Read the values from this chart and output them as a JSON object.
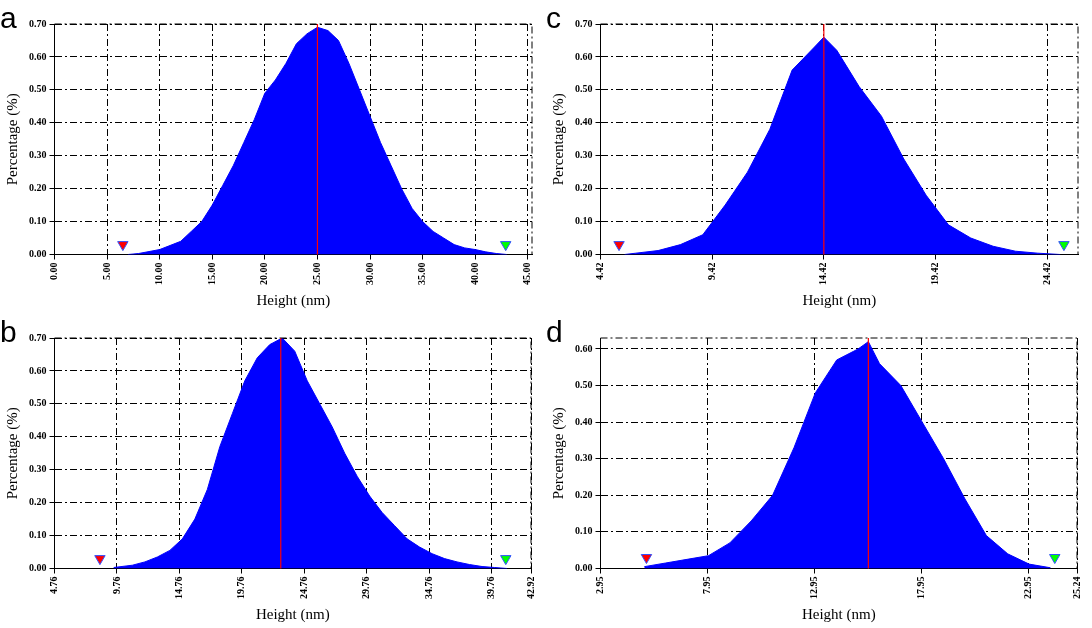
{
  "chart_data": [
    {
      "type": "area",
      "title": "a",
      "xlabel": "Height (nm)",
      "ylabel": "Percentage (%)",
      "grid": true,
      "xlim": [
        0,
        45.4
      ],
      "xticks": [
        {
          "value": 0,
          "label": "0.00"
        },
        {
          "value": 5,
          "label": "5.00"
        },
        {
          "value": 10,
          "label": "10.00"
        },
        {
          "value": 15,
          "label": "15.00"
        },
        {
          "value": 20,
          "label": "20.00"
        },
        {
          "value": 25,
          "label": "25.00"
        },
        {
          "value": 30,
          "label": "30.00"
        },
        {
          "value": 35,
          "label": "35.00"
        },
        {
          "value": 40,
          "label": "40.00"
        },
        {
          "value": 45,
          "label": "45.00"
        }
      ],
      "ylim": [
        0,
        0.7
      ],
      "yticks": [
        {
          "value": 0,
          "label": "0.00"
        },
        {
          "value": 0.1,
          "label": "0.10"
        },
        {
          "value": 0.2,
          "label": "0.20"
        },
        {
          "value": 0.3,
          "label": "0.30"
        },
        {
          "value": 0.4,
          "label": "0.40"
        },
        {
          "value": 0.5,
          "label": "0.50"
        },
        {
          "value": 0.6,
          "label": "0.60"
        },
        {
          "value": 0.7,
          "label": "0.70"
        }
      ],
      "ref_lines": [
        {
          "axis": "x",
          "value": 25,
          "color": "#ff0000"
        }
      ],
      "series": [
        {
          "color": "#0000ff",
          "x": [
            7,
            8,
            10,
            12,
            13,
            14,
            15,
            16,
            17,
            18,
            19,
            20,
            21,
            22,
            23,
            24,
            25,
            26,
            27,
            28,
            29,
            30,
            31,
            32,
            33,
            34,
            35,
            36,
            37,
            38,
            39,
            40,
            41,
            42,
            43
          ],
          "values": [
            0,
            0.003,
            0.015,
            0.04,
            0.07,
            0.1,
            0.15,
            0.21,
            0.27,
            0.34,
            0.41,
            0.49,
            0.53,
            0.58,
            0.64,
            0.67,
            0.69,
            0.68,
            0.65,
            0.58,
            0.5,
            0.42,
            0.34,
            0.27,
            0.2,
            0.14,
            0.1,
            0.07,
            0.05,
            0.03,
            0.02,
            0.015,
            0.008,
            0.003,
            0
          ]
        },
        {
          "type": "scatter",
          "marker": "triangle",
          "color": "#ff0000",
          "x": [
            6.5
          ],
          "values": [
            0.03
          ]
        },
        {
          "type": "scatter",
          "marker": "triangle",
          "color": "#00ff00",
          "x": [
            42.9
          ],
          "values": [
            0.03
          ]
        }
      ]
    },
    {
      "type": "area",
      "title": "c",
      "xlabel": "Height (nm)",
      "ylabel": "Percentage (%)",
      "grid": true,
      "xlim": [
        4.42,
        25.8
      ],
      "xticks": [
        {
          "value": 4.42,
          "label": "4.42"
        },
        {
          "value": 9.42,
          "label": "9.42"
        },
        {
          "value": 14.42,
          "label": "14.42"
        },
        {
          "value": 19.42,
          "label": "19.42"
        },
        {
          "value": 24.42,
          "label": "24.42"
        }
      ],
      "ylim": [
        0,
        0.7
      ],
      "yticks": [
        {
          "value": 0,
          "label": "0.00"
        },
        {
          "value": 0.1,
          "label": "0.10"
        },
        {
          "value": 0.2,
          "label": "0.20"
        },
        {
          "value": 0.3,
          "label": "0.30"
        },
        {
          "value": 0.4,
          "label": "0.40"
        },
        {
          "value": 0.5,
          "label": "0.50"
        },
        {
          "value": 0.6,
          "label": "0.60"
        },
        {
          "value": 0.7,
          "label": "0.70"
        }
      ],
      "ref_lines": [
        {
          "axis": "x",
          "value": 14.42,
          "color": "#ff0000"
        }
      ],
      "series": [
        {
          "color": "#0000ff",
          "x": [
            5.5,
            6,
            7,
            8,
            9,
            10,
            11,
            12,
            13,
            14,
            14.42,
            15,
            16,
            17,
            18,
            19,
            20,
            21,
            22,
            23,
            24,
            25
          ],
          "values": [
            0,
            0.004,
            0.012,
            0.03,
            0.06,
            0.15,
            0.25,
            0.38,
            0.56,
            0.63,
            0.66,
            0.62,
            0.51,
            0.42,
            0.29,
            0.18,
            0.09,
            0.05,
            0.025,
            0.01,
            0.004,
            0
          ]
        },
        {
          "type": "scatter",
          "marker": "triangle",
          "color": "#ff0000",
          "x": [
            5.25
          ],
          "values": [
            0.03
          ]
        },
        {
          "type": "scatter",
          "marker": "triangle",
          "color": "#00ff00",
          "x": [
            25.17
          ],
          "values": [
            0.03
          ]
        }
      ]
    },
    {
      "type": "area",
      "title": "b",
      "xlabel": "Height (nm)",
      "ylabel": "Percentage (%)",
      "grid": true,
      "xlim": [
        4.76,
        42.92
      ],
      "xticks": [
        {
          "value": 4.76,
          "label": "4.76"
        },
        {
          "value": 9.76,
          "label": "9.76"
        },
        {
          "value": 14.76,
          "label": "14.76"
        },
        {
          "value": 19.76,
          "label": "19.76"
        },
        {
          "value": 24.76,
          "label": "24.76"
        },
        {
          "value": 29.76,
          "label": "29.76"
        },
        {
          "value": 34.76,
          "label": "34.76"
        },
        {
          "value": 39.76,
          "label": "39.76"
        },
        {
          "value": 42.92,
          "label": "42.92"
        }
      ],
      "ylim": [
        0,
        0.7
      ],
      "yticks": [
        {
          "value": 0,
          "label": "0.00"
        },
        {
          "value": 0.1,
          "label": "0.10"
        },
        {
          "value": 0.2,
          "label": "0.20"
        },
        {
          "value": 0.3,
          "label": "0.30"
        },
        {
          "value": 0.4,
          "label": "0.40"
        },
        {
          "value": 0.5,
          "label": "0.50"
        },
        {
          "value": 0.6,
          "label": "0.60"
        },
        {
          "value": 0.7,
          "label": "0.70"
        }
      ],
      "ref_lines": [
        {
          "axis": "x",
          "value": 22.88,
          "color": "#ff0000"
        }
      ],
      "series": [
        {
          "color": "#0000ff",
          "x": [
            9.5,
            11,
            12,
            13,
            14,
            15,
            16,
            17,
            18,
            19,
            20,
            21,
            22,
            23,
            24,
            25,
            26,
            27,
            28,
            29,
            30,
            31,
            32,
            33,
            34,
            35,
            36,
            37,
            38,
            39,
            40,
            41
          ],
          "values": [
            0.003,
            0.01,
            0.02,
            0.035,
            0.055,
            0.09,
            0.15,
            0.24,
            0.37,
            0.47,
            0.57,
            0.64,
            0.68,
            0.7,
            0.66,
            0.57,
            0.5,
            0.43,
            0.35,
            0.28,
            0.22,
            0.17,
            0.13,
            0.09,
            0.065,
            0.045,
            0.03,
            0.02,
            0.012,
            0.006,
            0.003,
            0
          ]
        },
        {
          "type": "scatter",
          "marker": "triangle",
          "color": "#ff0000",
          "x": [
            8.4
          ],
          "values": [
            0.03
          ]
        },
        {
          "type": "scatter",
          "marker": "triangle",
          "color": "#00ff00",
          "x": [
            40.9
          ],
          "values": [
            0.03
          ]
        }
      ]
    },
    {
      "type": "area",
      "title": "d",
      "xlabel": "Height (nm)",
      "ylabel": "Percentage (%)",
      "grid": true,
      "xlim": [
        2.95,
        25.24
      ],
      "xticks": [
        {
          "value": 2.95,
          "label": "2.95"
        },
        {
          "value": 7.95,
          "label": "7.95"
        },
        {
          "value": 12.95,
          "label": "12.95"
        },
        {
          "value": 17.95,
          "label": "17.95"
        },
        {
          "value": 22.95,
          "label": "22.95"
        },
        {
          "value": 25.24,
          "label": "25.24"
        }
      ],
      "ylim": [
        0,
        0.63
      ],
      "yticks": [
        {
          "value": 0,
          "label": "0.00"
        },
        {
          "value": 0.1,
          "label": "0.10"
        },
        {
          "value": 0.2,
          "label": "0.20"
        },
        {
          "value": 0.3,
          "label": "0.30"
        },
        {
          "value": 0.4,
          "label": "0.40"
        },
        {
          "value": 0.5,
          "label": "0.50"
        },
        {
          "value": 0.6,
          "label": "0.60"
        }
      ],
      "ref_lines": [
        {
          "axis": "x",
          "value": 15.48,
          "color": "#ff0000"
        }
      ],
      "series": [
        {
          "color": "#0000ff",
          "x": [
            5,
            6,
            7,
            8,
            9,
            10,
            11,
            12,
            13,
            14,
            15,
            15.48,
            16,
            17,
            18,
            19,
            20,
            21,
            22,
            23,
            24
          ],
          "values": [
            0.005,
            0.015,
            0.025,
            0.035,
            0.07,
            0.13,
            0.2,
            0.33,
            0.48,
            0.57,
            0.6,
            0.62,
            0.56,
            0.5,
            0.4,
            0.3,
            0.19,
            0.09,
            0.04,
            0.012,
            0.002
          ]
        },
        {
          "type": "scatter",
          "marker": "triangle",
          "color": "#ff0000",
          "x": [
            5.1
          ],
          "values": [
            0.03
          ]
        },
        {
          "type": "scatter",
          "marker": "triangle",
          "color": "#00ff00",
          "x": [
            24.2
          ],
          "values": [
            0.03
          ]
        }
      ]
    }
  ]
}
